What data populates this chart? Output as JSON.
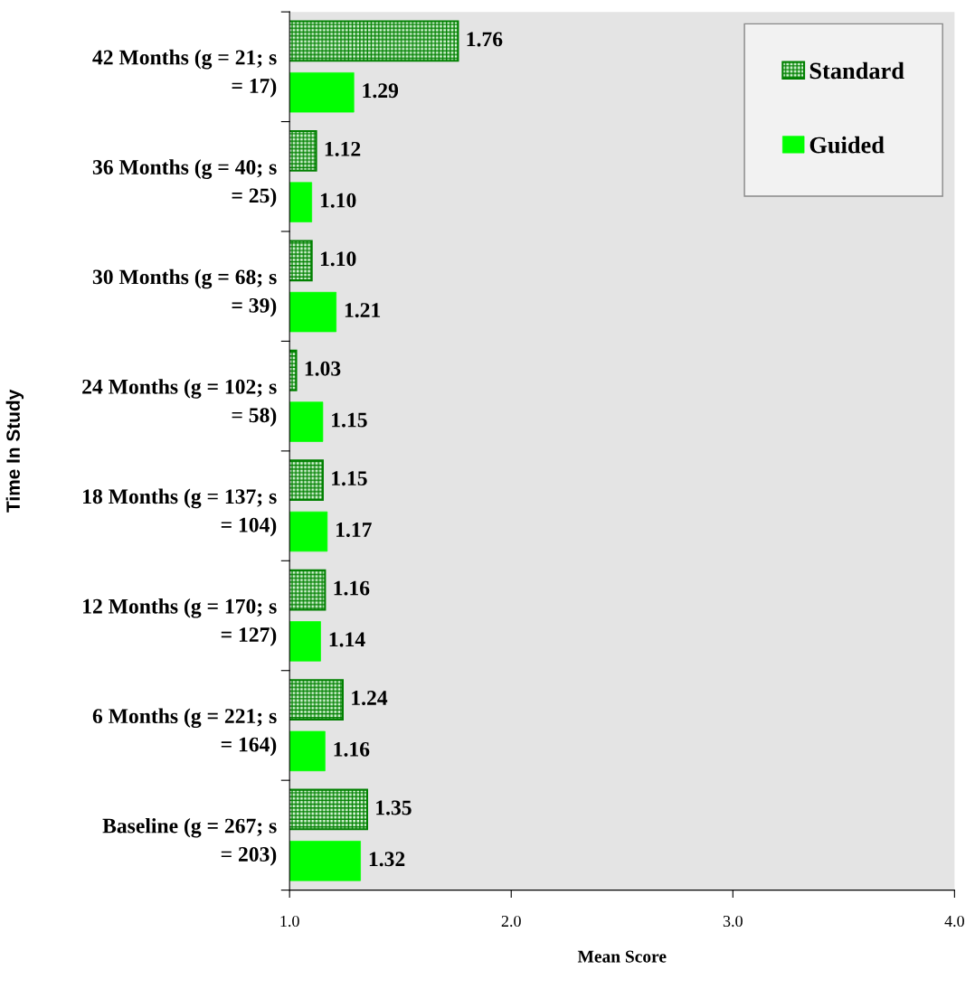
{
  "chart_data": {
    "type": "bar",
    "orientation": "horizontal",
    "ylabel": "Time In Study",
    "xlabel": "Mean Score",
    "categories": [
      "42 Months (g = 21; s = 17)",
      "36 Months (g = 40; s = 25)",
      "30 Months (g = 68; s = 39)",
      "24 Months (g = 102; s = 58)",
      "18 Months (g = 137; s = 104)",
      "12 Months (g = 170; s = 127)",
      "6 Months (g = 221; s = 164)",
      "Baseline (g = 267; s = 203)"
    ],
    "series": [
      {
        "name": "Standard",
        "color": "#008000",
        "values": [
          1.76,
          1.12,
          1.1,
          1.03,
          1.15,
          1.16,
          1.24,
          1.35
        ],
        "value_labels": [
          "1.76",
          "1.12",
          "1.10",
          "1.03",
          "1.15",
          "1.16",
          "1.24",
          "1.35"
        ]
      },
      {
        "name": "Guided",
        "color": "#00ff00",
        "values": [
          1.29,
          1.1,
          1.21,
          1.15,
          1.17,
          1.14,
          1.16,
          1.32
        ],
        "value_labels": [
          "1.29",
          "1.10",
          "1.21",
          "1.15",
          "1.17",
          "1.14",
          "1.16",
          "1.32"
        ]
      }
    ],
    "xlim": [
      1,
      4
    ],
    "xticks": [
      {
        "value": 1,
        "label": "1.0"
      },
      {
        "value": 2,
        "label": "2.0"
      },
      {
        "value": 3,
        "label": "3.0"
      },
      {
        "value": 4,
        "label": "4.0"
      }
    ],
    "grid": false,
    "legend": "top right"
  }
}
